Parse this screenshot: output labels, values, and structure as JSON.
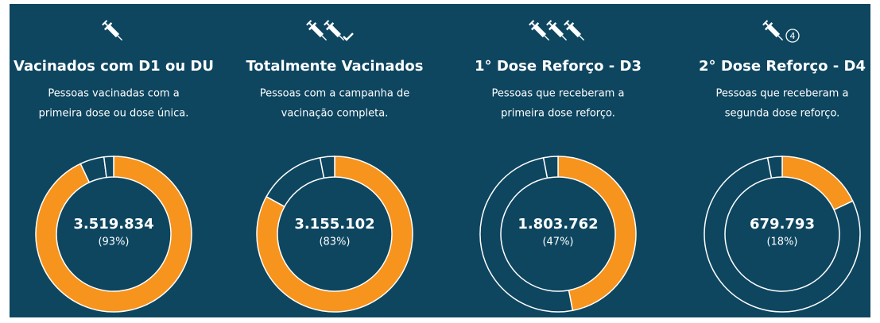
{
  "chart_data": [
    {
      "type": "donut",
      "title": "Vacinados com D1 ou DU",
      "subtitle": [
        "Pessoas vacinadas com a",
        "primeira dose ou dose única."
      ],
      "values": [
        93,
        5,
        2
      ],
      "color": "#f7941d",
      "center_label": "3.519.834",
      "center_sublabel": "(93%)"
    },
    {
      "type": "donut",
      "title": "Totalmente Vacinados",
      "subtitle": [
        "Pessoas com a campanha de",
        "vacinação completa."
      ],
      "values": [
        83,
        14,
        3
      ],
      "color": "#f7941d",
      "center_label": "3.155.102",
      "center_sublabel": "(83%)"
    },
    {
      "type": "donut",
      "title": "1° Dose Reforço - D3",
      "subtitle": [
        "Pessoas que receberam a",
        "primeira dose reforço."
      ],
      "values": [
        47,
        50,
        3
      ],
      "color": "#f7941d",
      "center_label": "1.803.762",
      "center_sublabel": "(47%)"
    },
    {
      "type": "donut",
      "title": "2° Dose Reforço - D4",
      "subtitle": [
        "Pessoas que receberam a",
        "segunda dose reforço."
      ],
      "values": [
        18,
        79,
        3
      ],
      "color": "#f7941d",
      "center_label": "679.793",
      "center_sublabel": "(18%)",
      "icon_badge": "4"
    }
  ]
}
